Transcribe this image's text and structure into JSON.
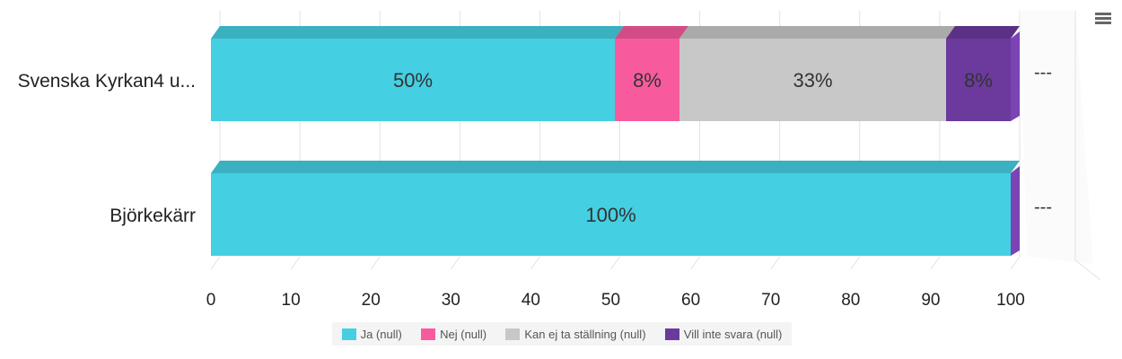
{
  "chart_data": {
    "type": "bar",
    "orientation": "horizontal",
    "stacked": true,
    "three_d": true,
    "categories": [
      "Svenska Kyrkan4 u...",
      "Björkekärr"
    ],
    "series": [
      {
        "name": "Ja (null)",
        "color": "#44cfe2",
        "values": [
          50,
          100
        ],
        "labels": [
          "50%",
          "100%"
        ]
      },
      {
        "name": "Nej (null)",
        "color": "#f75b9e",
        "values": [
          8,
          0
        ],
        "labels": [
          "8%",
          ""
        ]
      },
      {
        "name": "Kan ej ta ställning (null)",
        "color": "#c8c8c8",
        "values": [
          33,
          0
        ],
        "labels": [
          "33%",
          ""
        ]
      },
      {
        "name": "Vill inte svara (null)",
        "color": "#6b3a9c",
        "values": [
          8,
          0
        ],
        "labels": [
          "8%",
          ""
        ]
      }
    ],
    "row_end_labels": [
      "---",
      "---"
    ],
    "xlim": [
      0,
      100
    ],
    "xticks": [
      "0",
      "10",
      "20",
      "30",
      "40",
      "50",
      "60",
      "70",
      "80",
      "90",
      "100"
    ],
    "grid": true,
    "legend_position": "bottom-center"
  }
}
